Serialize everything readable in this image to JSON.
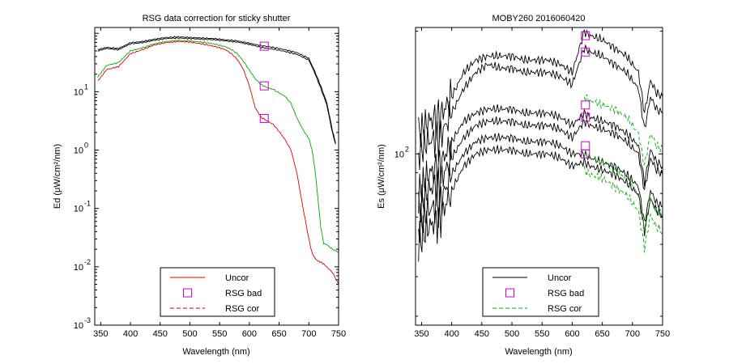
{
  "chart_data": [
    {
      "type": "line",
      "title": "RSG data correction for sticky shutter",
      "xlabel": "Wavelength (nm)",
      "ylabel": "Ed (μW/cm²/nm)",
      "xlim": [
        340,
        750
      ],
      "ylim_log10": [
        -3,
        2.1
      ],
      "yscale": "log",
      "x_ticks": [
        350,
        400,
        450,
        500,
        550,
        600,
        650,
        700,
        750
      ],
      "y_tick_labels": [
        {
          "base": "10",
          "exp": "1",
          "value": 1
        },
        {
          "base": "10",
          "exp": "0",
          "value": 0
        },
        {
          "base": "10",
          "exp": "-1",
          "value": -1
        },
        {
          "base": "10",
          "exp": "-2",
          "value": -2
        },
        {
          "base": "10",
          "exp": "-3",
          "value": -3
        }
      ],
      "grid": false,
      "legend_position": "bottom-center",
      "legend": [
        {
          "label": "Uncor",
          "style": "solid",
          "color": "#e00000"
        },
        {
          "label": "RSG bad",
          "style": "marker-square",
          "color": "#cc00cc"
        },
        {
          "label": "RSG cor",
          "style": "dashed",
          "color": "#e00000"
        }
      ],
      "series": [
        {
          "color": "#000000",
          "x": [
            345,
            360,
            380,
            400,
            420,
            440,
            460,
            480,
            500,
            520,
            540,
            560,
            580,
            600,
            620,
            640,
            660,
            680,
            700,
            710,
            720,
            730,
            740,
            745
          ],
          "y": [
            1.72,
            1.76,
            1.74,
            1.84,
            1.86,
            1.9,
            1.93,
            1.94,
            1.93,
            1.92,
            1.91,
            1.89,
            1.87,
            1.83,
            1.79,
            1.76,
            1.72,
            1.67,
            1.57,
            1.35,
            1.1,
            0.82,
            0.32,
            0.12
          ]
        },
        {
          "color": "#000000",
          "x": [
            345,
            360,
            380,
            400,
            420,
            440,
            460,
            480,
            500,
            520,
            540,
            560,
            580,
            600,
            620,
            640,
            660,
            680,
            700,
            710,
            720,
            730,
            740,
            745
          ],
          "y": [
            1.7,
            1.74,
            1.72,
            1.82,
            1.84,
            1.88,
            1.91,
            1.92,
            1.91,
            1.9,
            1.89,
            1.87,
            1.85,
            1.81,
            1.76,
            1.73,
            1.69,
            1.64,
            1.54,
            1.32,
            1.06,
            0.78,
            0.28,
            0.1
          ]
        },
        {
          "color": "#00aa00",
          "x": [
            345,
            360,
            380,
            400,
            420,
            440,
            460,
            480,
            500,
            520,
            540,
            560,
            570,
            580,
            590,
            600,
            610,
            620,
            630,
            640,
            650,
            660,
            670,
            680,
            690,
            700,
            705,
            710,
            715,
            720,
            725,
            730,
            740,
            750
          ],
          "y": [
            1.25,
            1.45,
            1.5,
            1.7,
            1.75,
            1.82,
            1.86,
            1.88,
            1.87,
            1.85,
            1.82,
            1.77,
            1.72,
            1.65,
            1.52,
            1.37,
            1.22,
            1.12,
            1.07,
            1.04,
            0.98,
            0.92,
            0.8,
            0.55,
            0.35,
            0.2,
            0.02,
            -0.3,
            -0.8,
            -1.32,
            -1.6,
            -1.62,
            -1.7,
            -1.75
          ]
        },
        {
          "color": "#e00000",
          "x": [
            345,
            360,
            380,
            400,
            420,
            440,
            460,
            480,
            500,
            520,
            540,
            560,
            570,
            580,
            590,
            600,
            610,
            620,
            630,
            640,
            650,
            660,
            670,
            680,
            690,
            700,
            705,
            710,
            715,
            720,
            725,
            730,
            740,
            750
          ],
          "y": [
            1.18,
            1.38,
            1.43,
            1.65,
            1.72,
            1.8,
            1.84,
            1.86,
            1.85,
            1.82,
            1.78,
            1.72,
            1.65,
            1.55,
            1.38,
            1.1,
            0.72,
            0.56,
            0.5,
            0.44,
            0.32,
            0.18,
            0.0,
            -0.4,
            -0.98,
            -1.52,
            -1.75,
            -1.85,
            -1.9,
            -1.92,
            -1.95,
            -2.0,
            -2.1,
            -2.3
          ]
        }
      ],
      "rsg_bad_markers": {
        "x": [
          625,
          625,
          625
        ],
        "y": [
          1.78,
          1.1,
          0.54
        ]
      }
    },
    {
      "type": "line",
      "title": "MOBY260  2016060420",
      "xlabel": "Wavelength (nm)",
      "ylabel": "Es (μW/cm²/nm)",
      "xlim": [
        340,
        750
      ],
      "ylim_log10": [
        1.58,
        2.31
      ],
      "yscale": "log",
      "x_ticks": [
        350,
        400,
        450,
        500,
        550,
        600,
        650,
        700,
        750
      ],
      "y_tick_labels": [
        {
          "base": "10",
          "exp": "2",
          "value": 2
        }
      ],
      "grid": false,
      "legend_position": "bottom-center",
      "legend": [
        {
          "label": "Uncor",
          "style": "solid",
          "color": "#000000"
        },
        {
          "label": "RSG bad",
          "style": "marker-square",
          "color": "#cc00cc"
        },
        {
          "label": "RSG cor",
          "style": "dashed",
          "color": "#00aa00"
        }
      ],
      "series": [
        {
          "color": "#000000",
          "x": [
            345,
            360,
            380,
            400,
            420,
            440,
            460,
            480,
            500,
            520,
            540,
            560,
            580,
            600,
            620,
            630,
            650,
            670,
            690,
            710,
            720,
            730,
            740,
            750
          ],
          "y": [
            2.05,
            2.08,
            2.09,
            2.14,
            2.2,
            2.23,
            2.24,
            2.24,
            2.24,
            2.23,
            2.23,
            2.23,
            2.22,
            2.2,
            2.3,
            2.29,
            2.28,
            2.26,
            2.24,
            2.2,
            2.1,
            2.18,
            2.15,
            2.14
          ]
        },
        {
          "color": "#000000",
          "x": [
            345,
            360,
            380,
            400,
            420,
            440,
            460,
            480,
            500,
            520,
            540,
            560,
            580,
            600,
            620,
            630,
            650,
            670,
            690,
            710,
            720,
            730,
            740,
            750
          ],
          "y": [
            2.0,
            2.03,
            2.04,
            2.1,
            2.16,
            2.2,
            2.22,
            2.21,
            2.21,
            2.2,
            2.2,
            2.2,
            2.19,
            2.17,
            2.26,
            2.25,
            2.24,
            2.22,
            2.2,
            2.16,
            2.06,
            2.14,
            2.11,
            2.1
          ]
        },
        {
          "color": "#000000",
          "x": [
            345,
            360,
            380,
            400,
            420,
            440,
            460,
            480,
            500,
            520,
            540,
            560,
            580,
            600,
            620,
            630,
            650,
            670,
            690,
            710,
            720,
            730,
            740,
            750
          ],
          "y": [
            1.9,
            1.95,
            1.97,
            2.03,
            2.08,
            2.1,
            2.11,
            2.11,
            2.11,
            2.1,
            2.1,
            2.1,
            2.09,
            2.07,
            2.1,
            2.09,
            2.08,
            2.07,
            2.05,
            2.02,
            1.93,
            2.01,
            1.98,
            1.97
          ]
        },
        {
          "color": "#000000",
          "x": [
            345,
            360,
            380,
            400,
            420,
            440,
            460,
            480,
            500,
            520,
            540,
            560,
            580,
            600,
            620,
            630,
            650,
            670,
            690,
            710,
            720,
            730,
            740,
            750
          ],
          "y": [
            1.86,
            1.91,
            1.93,
            1.99,
            2.04,
            2.07,
            2.08,
            2.08,
            2.08,
            2.07,
            2.07,
            2.07,
            2.06,
            2.04,
            2.08,
            2.07,
            2.06,
            2.05,
            2.03,
            2.0,
            1.91,
            1.99,
            1.96,
            1.95
          ]
        },
        {
          "color": "#000000",
          "x": [
            345,
            360,
            380,
            400,
            420,
            440,
            460,
            480,
            500,
            520,
            540,
            560,
            580,
            600,
            620,
            630,
            650,
            670,
            690,
            710,
            720,
            730,
            740,
            750
          ],
          "y": [
            1.82,
            1.86,
            1.88,
            1.95,
            2.0,
            2.03,
            2.04,
            2.04,
            2.04,
            2.03,
            2.03,
            2.03,
            2.02,
            2.0,
            2.0,
            1.99,
            1.98,
            1.97,
            1.95,
            1.92,
            1.83,
            1.91,
            1.88,
            1.87
          ]
        },
        {
          "color": "#000000",
          "x": [
            345,
            360,
            380,
            400,
            420,
            440,
            460,
            480,
            500,
            520,
            540,
            560,
            580,
            600,
            620,
            630,
            650,
            670,
            690,
            710,
            720,
            730,
            740,
            750
          ],
          "y": [
            1.78,
            1.82,
            1.84,
            1.91,
            1.97,
            2.0,
            2.01,
            2.01,
            2.01,
            2.0,
            2.0,
            2.0,
            1.99,
            1.97,
            1.98,
            1.97,
            1.96,
            1.95,
            1.93,
            1.9,
            1.81,
            1.89,
            1.86,
            1.85
          ]
        },
        {
          "color": "#00aa00",
          "x": [
            620,
            630,
            650,
            670,
            690,
            710,
            720,
            730,
            740,
            750
          ],
          "y": [
            2.14,
            2.13,
            2.12,
            2.11,
            2.09,
            2.05,
            1.97,
            2.05,
            2.02,
            2.01
          ]
        },
        {
          "color": "#00aa00",
          "x": [
            620,
            630,
            650,
            670,
            690,
            710,
            720,
            730,
            740,
            750
          ],
          "y": [
            2.0,
            1.99,
            1.98,
            1.96,
            1.94,
            1.9,
            1.81,
            1.89,
            1.86,
            1.85
          ]
        },
        {
          "color": "#00aa00",
          "x": [
            620,
            630,
            650,
            670,
            690,
            710,
            720,
            730,
            740,
            750
          ],
          "y": [
            1.96,
            1.95,
            1.94,
            1.92,
            1.9,
            1.86,
            1.77,
            1.85,
            1.82,
            1.81
          ]
        }
      ],
      "rsg_bad_markers": {
        "x": [
          622,
          622,
          622,
          622,
          622,
          622
        ],
        "y": [
          2.29,
          2.25,
          2.12,
          2.09,
          2.02,
          2.0
        ]
      }
    }
  ]
}
